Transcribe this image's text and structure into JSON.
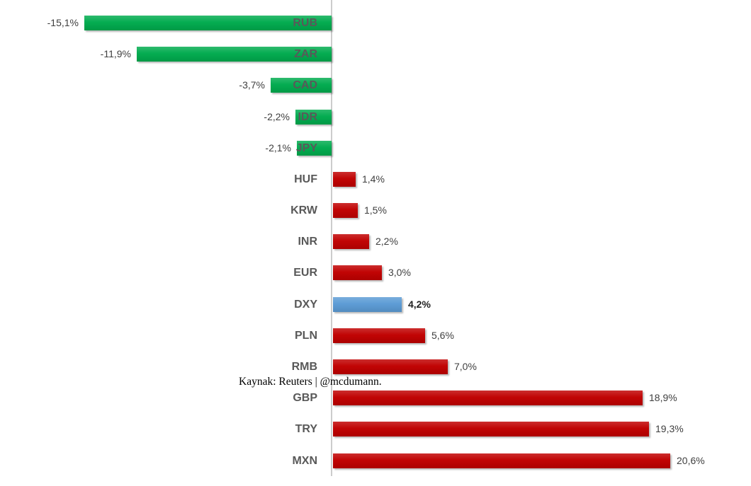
{
  "colors": {
    "green": "#00AB4E",
    "red": "#C00000",
    "blue": "#5B9BD5",
    "axis": "#CCCCCC",
    "category_label": "#595959",
    "value_label": "#3F3F3F"
  },
  "annotation": {
    "text": "Kaynak: Reuters | @mcdumann."
  },
  "chart_data": {
    "type": "bar",
    "orientation": "horizontal",
    "title": "",
    "xlabel": "",
    "ylabel": "",
    "xlim": [
      -16,
      22
    ],
    "grid": false,
    "legend": null,
    "value_suffix": "%",
    "decimal_separator": ",",
    "categories": [
      "RUB",
      "ZAR",
      "CAD",
      "IDR",
      "JPY",
      "HUF",
      "KRW",
      "INR",
      "EUR",
      "DXY",
      "PLN",
      "RMB",
      "GBP",
      "TRY",
      "MXN"
    ],
    "values": [
      -15.1,
      -11.9,
      -3.7,
      -2.2,
      -2.1,
      1.4,
      1.5,
      2.2,
      3.0,
      4.2,
      5.6,
      7.0,
      18.9,
      19.3,
      20.6
    ],
    "display_values": [
      "-15,1%",
      "-11,9%",
      "-3,7%",
      "-2,2%",
      "-2,1%",
      "1,4%",
      "1,5%",
      "2,2%",
      "3,0%",
      "4,2%",
      "5,6%",
      "7,0%",
      "18,9%",
      "19,3%",
      "20,6%"
    ],
    "bar_colors": [
      "green",
      "green",
      "green",
      "green",
      "green",
      "red",
      "red",
      "red",
      "red",
      "blue",
      "red",
      "red",
      "red",
      "red",
      "red"
    ],
    "bold_value_index": 9,
    "annotation": "Kaynak: Reuters | @mcdumann."
  }
}
